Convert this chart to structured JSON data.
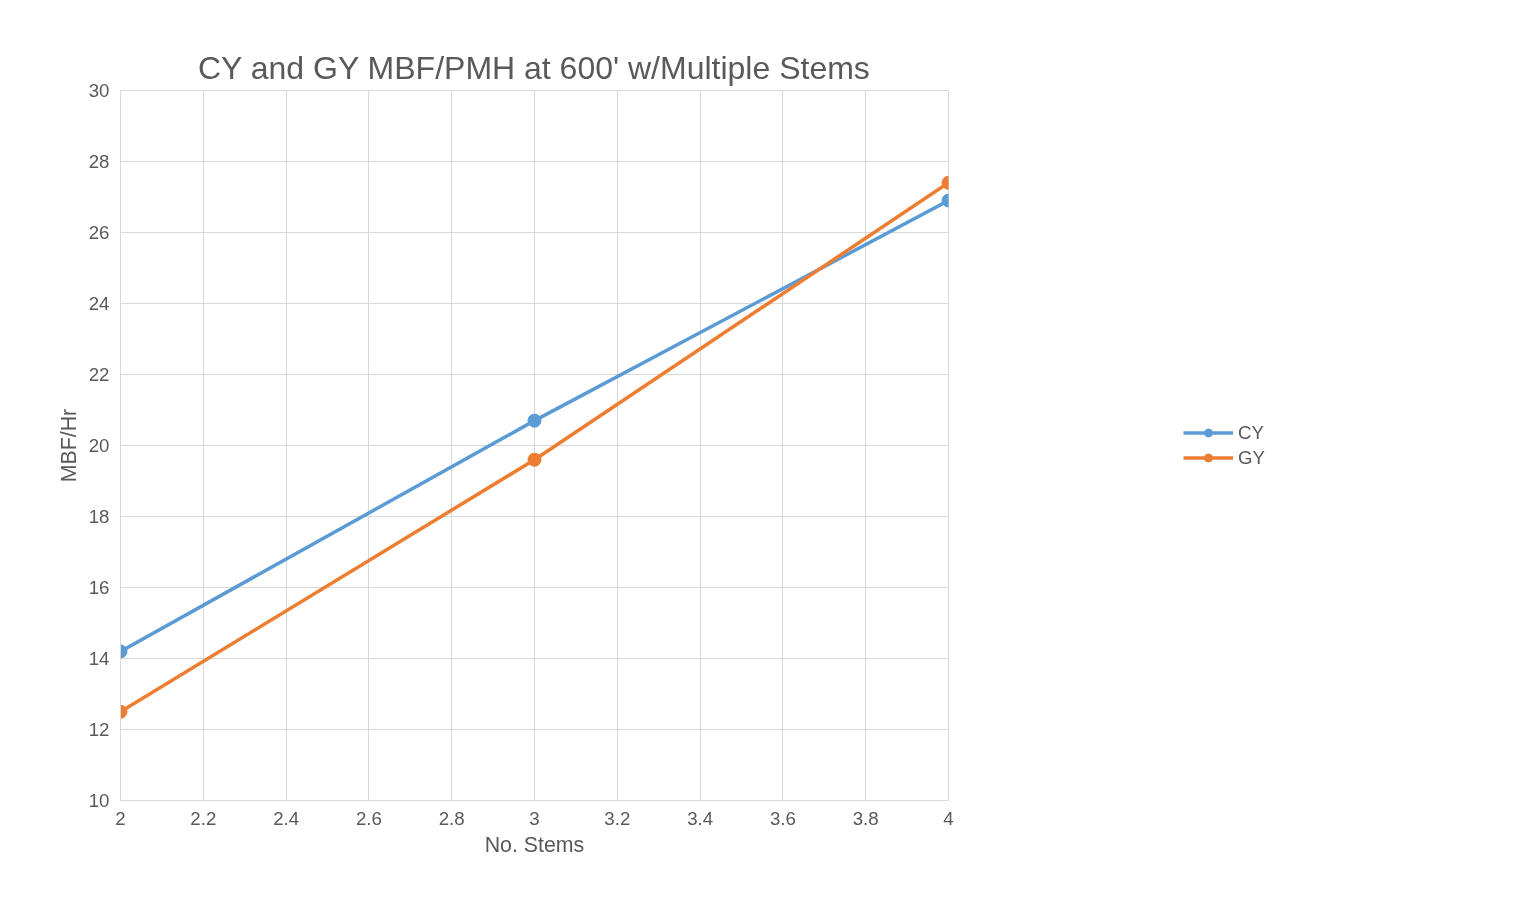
{
  "chart_data": {
    "type": "line",
    "title": "CY and GY MBF/PMH at 600' w/Multiple Stems",
    "xlabel": "No. Stems",
    "ylabel": "MBF/Hr",
    "x": [
      2,
      3,
      4
    ],
    "series": [
      {
        "name": "CY",
        "color": "#5b9bd5",
        "values": [
          14.2,
          20.7,
          26.9
        ]
      },
      {
        "name": "GY",
        "color": "#ed7d31",
        "values": [
          12.5,
          19.6,
          27.4
        ]
      }
    ],
    "xlim": [
      2,
      4
    ],
    "xticks": [
      2,
      2.2,
      2.4,
      2.6,
      2.8,
      3,
      3.2,
      3.4,
      3.6,
      3.8,
      4
    ],
    "ylim": [
      10,
      30
    ],
    "yticks": [
      10,
      12,
      14,
      16,
      18,
      20,
      22,
      24,
      26,
      28,
      30
    ],
    "grid": true,
    "legend": "right",
    "marker": "circle",
    "line_style": "solid"
  }
}
